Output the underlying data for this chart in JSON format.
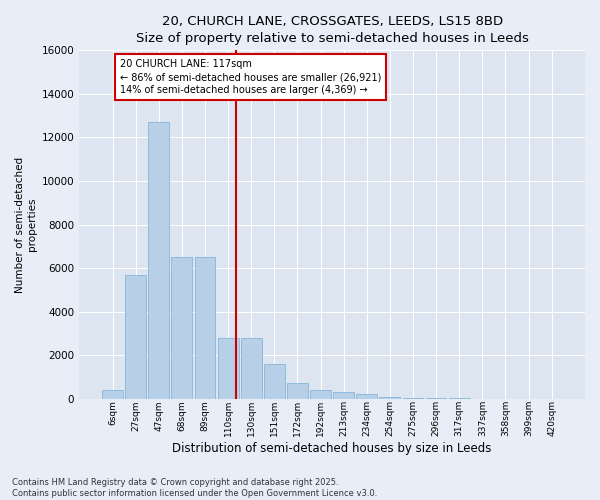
{
  "title_line1": "20, CHURCH LANE, CROSSGATES, LEEDS, LS15 8BD",
  "title_line2": "Size of property relative to semi-detached houses in Leeds",
  "xlabel": "Distribution of semi-detached houses by size in Leeds",
  "ylabel": "Number of semi-detached\nproperties",
  "bar_labels": [
    "6sqm",
    "27sqm",
    "47sqm",
    "68sqm",
    "89sqm",
    "110sqm",
    "130sqm",
    "151sqm",
    "172sqm",
    "192sqm",
    "213sqm",
    "234sqm",
    "254sqm",
    "275sqm",
    "296sqm",
    "317sqm",
    "337sqm",
    "358sqm",
    "399sqm",
    "420sqm"
  ],
  "bar_values": [
    400,
    5700,
    12700,
    6500,
    6500,
    2800,
    2800,
    1600,
    700,
    400,
    300,
    200,
    100,
    50,
    20,
    10,
    5,
    3,
    1,
    1
  ],
  "bar_color": "#b8cfe8",
  "bar_edge_color": "#7aadd4",
  "ylim": [
    0,
    16000
  ],
  "yticks": [
    0,
    2000,
    4000,
    6000,
    8000,
    10000,
    12000,
    14000,
    16000
  ],
  "vline_x_index": 5.35,
  "annotation_text": "20 CHURCH LANE: 117sqm\n← 86% of semi-detached houses are smaller (26,921)\n14% of semi-detached houses are larger (4,369) →",
  "annotation_box_color": "#ffffff",
  "annotation_border_color": "#cc0000",
  "vline_color": "#cc0000",
  "footer_line1": "Contains HM Land Registry data © Crown copyright and database right 2025.",
  "footer_line2": "Contains public sector information licensed under the Open Government Licence v3.0.",
  "background_color": "#e8eef8",
  "plot_bg_color": "#dce5f0",
  "grid_color": "#ffffff",
  "title_fontsize": 9.5,
  "subtitle_fontsize": 8.5
}
